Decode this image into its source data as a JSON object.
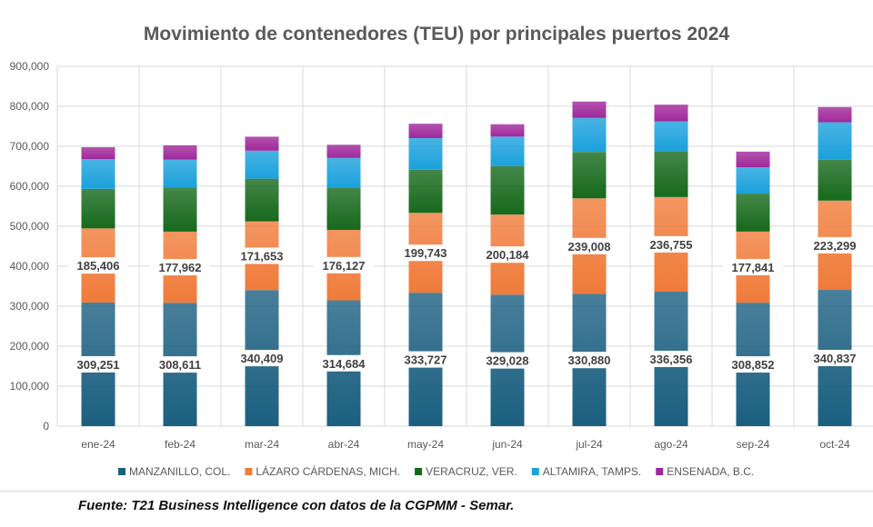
{
  "chart_data": {
    "type": "bar",
    "stacked": true,
    "title": "Movimiento de contenedores (TEU) por principales puertos  2024",
    "categories": [
      "ene-24",
      "feb-24",
      "mar-24",
      "abr-24",
      "may-24",
      "jun-24",
      "jul-24",
      "ago-24",
      "sep-24",
      "oct-24"
    ],
    "ylim": [
      0,
      900000
    ],
    "yticks": [
      0,
      100000,
      200000,
      300000,
      400000,
      500000,
      600000,
      700000,
      800000,
      900000
    ],
    "grid": true,
    "legend_position": "bottom",
    "series": [
      {
        "name": "MANZANILLO, COL.",
        "color": "#1b5f80",
        "labeled": true,
        "values": [
          309251,
          308611,
          340409,
          314684,
          333727,
          329028,
          330880,
          336356,
          308852,
          340837
        ]
      },
      {
        "name": "LÁZARO CÁRDENAS, MICH.",
        "color": "#f07b3a",
        "labeled": true,
        "values": [
          185406,
          177962,
          171653,
          176127,
          199743,
          200184,
          239008,
          236755,
          177841,
          223299
        ]
      },
      {
        "name": "VERACRUZ, VER.",
        "color": "#16691c",
        "labeled": false,
        "values": [
          99000,
          110000,
          107000,
          106000,
          108000,
          121000,
          116000,
          115000,
          95000,
          102000
        ]
      },
      {
        "name": "ALTAMIRA, TAMPS.",
        "color": "#1ba1dc",
        "labeled": false,
        "values": [
          74000,
          70000,
          70000,
          74000,
          79000,
          74000,
          85000,
          74000,
          66000,
          94000
        ]
      },
      {
        "name": "ENSENADA, B.C.",
        "color": "#a0289b",
        "labeled": false,
        "values": [
          30000,
          36000,
          35000,
          33000,
          36000,
          31000,
          41000,
          42000,
          39000,
          38000
        ]
      }
    ]
  },
  "footer": {
    "source": "Fuente: T21 Business Intelligence con datos de la CGPMM - Semar."
  }
}
